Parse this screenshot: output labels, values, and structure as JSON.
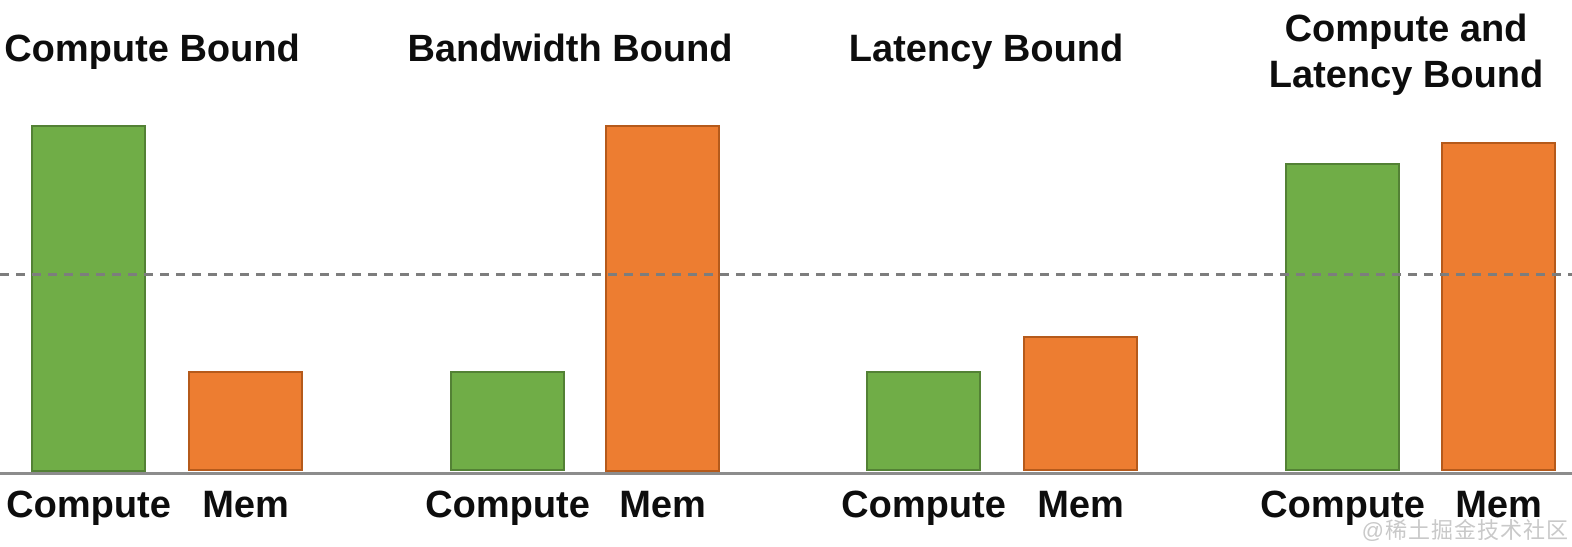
{
  "figure": {
    "background": "#ffffff",
    "watermark": "@稀土掘金技术社区"
  },
  "colors": {
    "green_bar": "#70ad47",
    "green_bar_border": "#538135",
    "orange_bar": "#ed7d31",
    "orange_bar_border": "#b55a1b",
    "dashed_line": "#7d7d7d",
    "axis_line": "#8c8c8c",
    "text": "#0d0d0d",
    "watermark_text": "#c9c9c9"
  },
  "chart_data": [
    {
      "type": "bar",
      "title": "Compute Bound",
      "categories": [
        "Compute",
        "Mem"
      ],
      "values": [
        100,
        29
      ],
      "bar_colors": [
        "#70ad47",
        "#ed7d31"
      ],
      "ylim": [
        0,
        100
      ],
      "threshold_line": {
        "value": 56.5,
        "style": "dashed",
        "color": "#7d7d7d"
      },
      "grid": false,
      "legend": false
    },
    {
      "type": "bar",
      "title": "Bandwidth Bound",
      "categories": [
        "Compute",
        "Mem"
      ],
      "values": [
        29,
        100
      ],
      "bar_colors": [
        "#70ad47",
        "#ed7d31"
      ],
      "ylim": [
        0,
        100
      ],
      "threshold_line": {
        "value": 56.5,
        "style": "dashed",
        "color": "#7d7d7d"
      },
      "grid": false,
      "legend": false
    },
    {
      "type": "bar",
      "title": "Latency Bound",
      "categories": [
        "Compute",
        "Mem"
      ],
      "values": [
        29,
        39
      ],
      "bar_colors": [
        "#70ad47",
        "#ed7d31"
      ],
      "ylim": [
        0,
        100
      ],
      "threshold_line": {
        "value": 56.5,
        "style": "dashed",
        "color": "#7d7d7d"
      },
      "grid": false,
      "legend": false
    },
    {
      "type": "bar",
      "title": "Compute and Latency Bound",
      "categories": [
        "Compute",
        "Mem"
      ],
      "values": [
        89,
        95
      ],
      "bar_colors": [
        "#70ad47",
        "#ed7d31"
      ],
      "ylim": [
        0,
        100
      ],
      "threshold_line": {
        "value": 56.5,
        "style": "dashed",
        "color": "#7d7d7d"
      },
      "grid": false,
      "legend": false
    }
  ]
}
